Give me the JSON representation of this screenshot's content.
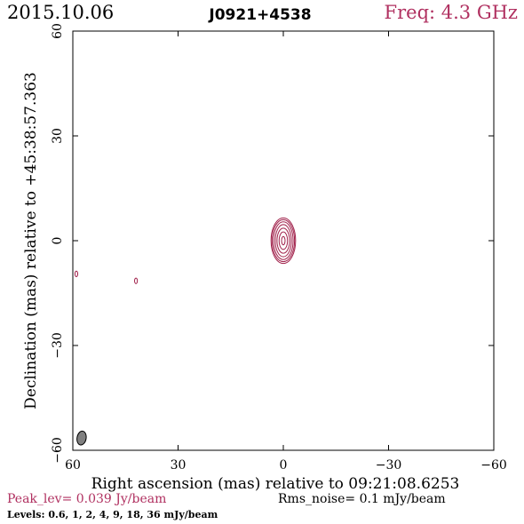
{
  "header": {
    "date": "2015.10.06",
    "source": "J0921+4538",
    "freq": "Freq: 4.3 GHz"
  },
  "footer": {
    "peak": "Peak_lev=  0.039 Jy/beam",
    "rms": "Rms_noise=   0.1 mJy/beam",
    "levels": "Levels: 0.6,    1,    2,    4,    9,   18,   36  mJy/beam"
  },
  "colors": {
    "accent": "#b03060",
    "contour": "#a0204a",
    "beam": "#808080"
  },
  "chart_data": {
    "type": "contour",
    "xlabel": "Right ascension (mas) relative to 09:21:08.6253",
    "ylabel": "Declination (mas) relative to +45:38:57.363",
    "xlim": [
      60,
      -60
    ],
    "ylim": [
      -60,
      60
    ],
    "xticks": [
      60,
      30,
      0,
      -30,
      -60
    ],
    "yticks": [
      60,
      30,
      0,
      -30,
      -60
    ],
    "xtick_labels": [
      "60",
      "30",
      "0",
      "−30",
      "−60"
    ],
    "ytick_labels": [
      "60",
      "30",
      "0",
      "−30",
      "−60"
    ],
    "contour_levels_mJy": [
      0.6,
      1,
      2,
      4,
      9,
      18,
      36
    ],
    "core": {
      "x": 0,
      "y": 0,
      "contours": [
        {
          "ra": 3.5,
          "rdec": 6.5
        },
        {
          "ra": 3.2,
          "rdec": 6.0
        },
        {
          "ra": 2.8,
          "rdec": 5.4
        },
        {
          "ra": 2.3,
          "rdec": 4.6
        },
        {
          "ra": 1.8,
          "rdec": 3.6
        },
        {
          "ra": 1.2,
          "rdec": 2.5
        },
        {
          "ra": 0.5,
          "rdec": 1.2
        }
      ]
    },
    "spots": [
      {
        "x": 59.0,
        "y": -9.5,
        "ra": 0.4,
        "rdec": 0.8
      },
      {
        "x": 42.0,
        "y": -11.5,
        "ra": 0.4,
        "rdec": 0.8
      }
    ],
    "beam": {
      "x": 57.5,
      "y": -56.5,
      "ra": 1.3,
      "rdec": 2.0,
      "angle": 10
    }
  }
}
